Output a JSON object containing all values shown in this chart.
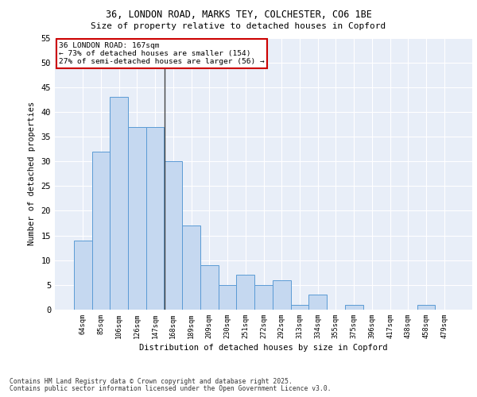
{
  "title_line1": "36, LONDON ROAD, MARKS TEY, COLCHESTER, CO6 1BE",
  "title_line2": "Size of property relative to detached houses in Copford",
  "xlabel": "Distribution of detached houses by size in Copford",
  "ylabel": "Number of detached properties",
  "categories": [
    "64sqm",
    "85sqm",
    "106sqm",
    "126sqm",
    "147sqm",
    "168sqm",
    "189sqm",
    "209sqm",
    "230sqm",
    "251sqm",
    "272sqm",
    "292sqm",
    "313sqm",
    "334sqm",
    "355sqm",
    "375sqm",
    "396sqm",
    "417sqm",
    "438sqm",
    "458sqm",
    "479sqm"
  ],
  "values": [
    14,
    32,
    43,
    37,
    37,
    30,
    17,
    9,
    5,
    7,
    5,
    6,
    1,
    3,
    0,
    1,
    0,
    0,
    0,
    1,
    0
  ],
  "bar_color": "#c5d8f0",
  "bar_edge_color": "#5b9bd5",
  "vline_x": 4.5,
  "annotation_text": "36 LONDON ROAD: 167sqm\n← 73% of detached houses are smaller (154)\n27% of semi-detached houses are larger (56) →",
  "annotation_box_color": "#ffffff",
  "annotation_edge_color": "#cc0000",
  "ylim": [
    0,
    55
  ],
  "yticks": [
    0,
    5,
    10,
    15,
    20,
    25,
    30,
    35,
    40,
    45,
    50,
    55
  ],
  "background_color": "#e8eef8",
  "grid_color": "#ffffff",
  "footer_line1": "Contains HM Land Registry data © Crown copyright and database right 2025.",
  "footer_line2": "Contains public sector information licensed under the Open Government Licence v3.0."
}
